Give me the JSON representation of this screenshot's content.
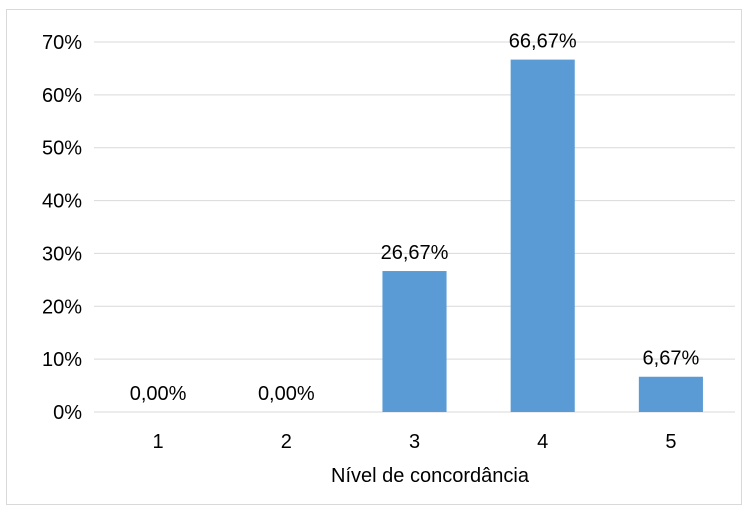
{
  "chart_data": {
    "type": "bar",
    "categories": [
      "1",
      "2",
      "3",
      "4",
      "5"
    ],
    "values": [
      0.0,
      0.0,
      26.67,
      66.67,
      6.67
    ],
    "data_labels": [
      "0,00%",
      "0,00%",
      "26,67%",
      "66,67%",
      "6,67%"
    ],
    "title": "",
    "xlabel": "Nível de concordância",
    "ylabel": "",
    "ylim": [
      0,
      70
    ],
    "yticks": [
      0,
      10,
      20,
      30,
      40,
      50,
      60,
      70
    ],
    "ytick_labels": [
      "0%",
      "10%",
      "20%",
      "30%",
      "40%",
      "50%",
      "60%",
      "70%"
    ],
    "grid": true,
    "legend": "none",
    "bar_color": "#5b9bd5",
    "grid_color": "#d9d9d9"
  }
}
